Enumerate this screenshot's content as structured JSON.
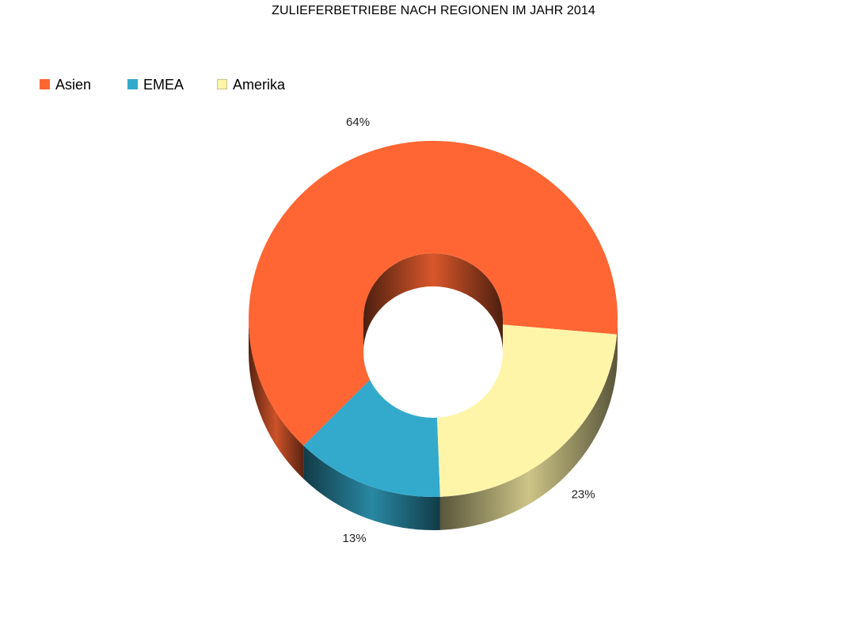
{
  "chart_data": {
    "type": "pie",
    "variant": "3d-donut",
    "title": "ZULIEFERBETRIEBE NACH REGIONEN IM JAHR 2014",
    "legend_position": "top-left",
    "series": [
      {
        "name": "Asien",
        "value": 64,
        "label": "64%",
        "color": "#ff6633"
      },
      {
        "name": "EMEA",
        "value": 13,
        "label": "13%",
        "color": "#33aacc"
      },
      {
        "name": "Amerika",
        "value": 23,
        "label": "23%",
        "color": "#fff5a8"
      }
    ]
  }
}
